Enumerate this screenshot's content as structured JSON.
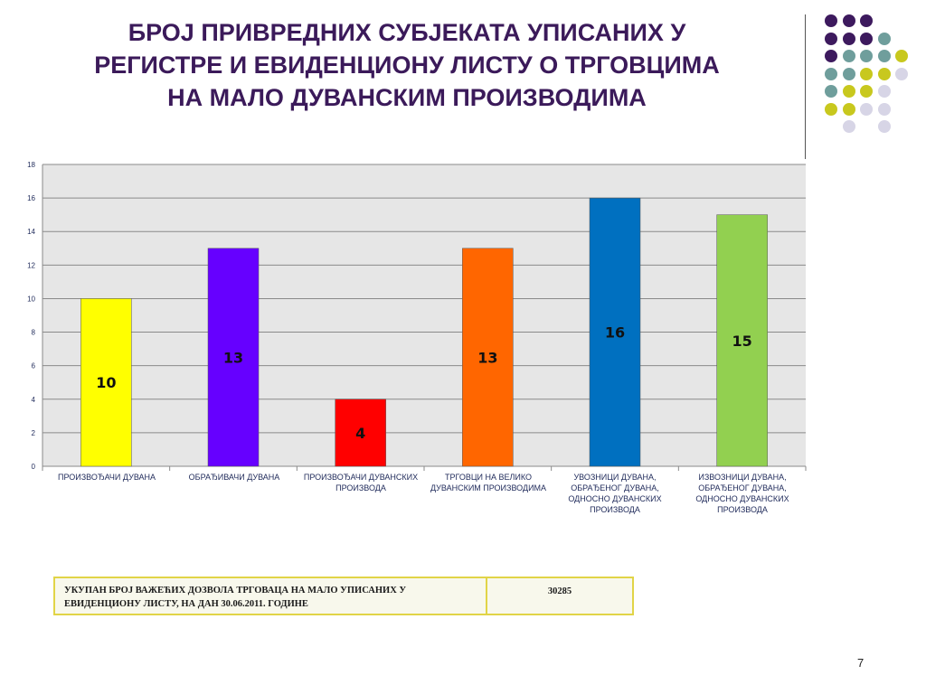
{
  "slide": {
    "title_lines": [
      "БРОЈ ПРИВРЕДНИХ СУБЈЕКАТА УПИСАНИХ У",
      "РЕГИСТРЕ И ЕВИДЕНЦИОНУ ЛИСТУ О ТРГОВЦИМА",
      "НА МАЛО ДУВАНСКИМ ПРОИЗВОДИМА"
    ],
    "page_number": "7",
    "colors": {
      "title": "#3b1a5a",
      "dot_purple": "#3d1a5e",
      "dot_teal": "#6f9e9c",
      "dot_yellow": "#c8c81e",
      "dot_lavender": "#d7d5e6"
    }
  },
  "chart_data": {
    "type": "bar",
    "categories": [
      "ПРОИЗВОЂАЧИ ДУВАНА",
      "ОБРАЂИВАЧИ ДУВАНА",
      "ПРОИЗВОЂАЧИ ДУВАНСКИХ ПРОИЗВОДА",
      "ТРГОВЦИ НА ВЕЛИКО ДУВАНСКИМ ПРОИЗВОДИМА",
      "УВОЗНИЦИ ДУВАНА, ОБРАЂЕНОГ ДУВАНА, ОДНОСНО ДУВАНСКИХ ПРОИЗВОДА",
      "ИЗВОЗНИЦИ ДУВАНА, ОБРАЂЕНОГ ДУВАНА, ОДНОСНО ДУВАНСКИХ ПРОИЗВОДА"
    ],
    "values": [
      10,
      13,
      4,
      13,
      16,
      15
    ],
    "data_labels": [
      "10",
      "13",
      "4",
      "13",
      "16",
      "15"
    ],
    "bar_colors": [
      "#ffff00",
      "#6600ff",
      "#ff0000",
      "#ff6600",
      "#0070c0",
      "#92d050"
    ],
    "ylim": [
      0,
      18
    ],
    "yticks": [
      0,
      2,
      4,
      6,
      8,
      10,
      12,
      14,
      16,
      18
    ],
    "ytick_labels": [
      "0",
      "2",
      "4",
      "6",
      "8",
      "10",
      "12",
      "14",
      "16",
      "18"
    ],
    "grid": true,
    "legend": "none",
    "title": "",
    "xlabel": "",
    "ylabel": ""
  },
  "total_table": {
    "label": "УКУПАН БРОЈ ВАЖЕЋИХ ДОЗВОЛА ТРГОВАЦА НА МАЛО УПИСАНИХ У ЕВИДЕНЦИОНУ ЛИСТУ, НА ДАН 30.06.2011. ГОДИНЕ",
    "value": "30285"
  }
}
